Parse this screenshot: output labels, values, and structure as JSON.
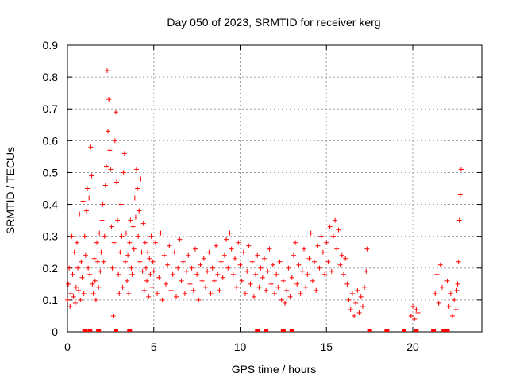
{
  "chart_data": {
    "type": "scatter",
    "title": "Day 050 of 2023, SRMTID for receiver kerg",
    "xlabel": "GPS time / hours",
    "ylabel": "SRMTID / TECUs",
    "xlim": [
      0,
      24
    ],
    "ylim": [
      0,
      0.9
    ],
    "grid": true,
    "legend": "none",
    "marker": "+",
    "color": "#ff0000",
    "x_ticks": [
      0,
      5,
      10,
      15,
      20
    ],
    "x_tick_labels": [
      "0",
      "5",
      "10",
      "15",
      "20"
    ],
    "y_ticks": [
      0,
      0.1,
      0.2,
      0.3,
      0.4,
      0.5,
      0.6,
      0.7,
      0.8,
      0.9
    ],
    "y_tick_labels": [
      "0",
      "0.1",
      "0.2",
      "0.3",
      "0.4",
      "0.5",
      "0.6",
      "0.7",
      "0.8",
      "0.9"
    ],
    "series": [
      {
        "name": "SRMTID",
        "points": [
          [
            0.0,
            0.1
          ],
          [
            0.05,
            0.15
          ],
          [
            0.1,
            0.2
          ],
          [
            0.15,
            0.08
          ],
          [
            0.2,
            0.12
          ],
          [
            0.25,
            0.3
          ],
          [
            0.3,
            0.18
          ],
          [
            0.35,
            0.11
          ],
          [
            0.4,
            0.25
          ],
          [
            0.45,
            0.09
          ],
          [
            0.5,
            0.14
          ],
          [
            0.55,
            0.28
          ],
          [
            0.6,
            0.2
          ],
          [
            0.65,
            0.13
          ],
          [
            0.7,
            0.37
          ],
          [
            0.75,
            0.1
          ],
          [
            0.8,
            0.22
          ],
          [
            0.85,
            0.17
          ],
          [
            0.9,
            0.41
          ],
          [
            0.95,
            0.12
          ],
          [
            1.0,
            0.3
          ],
          [
            1.05,
            0.24
          ],
          [
            1.1,
            0.38
          ],
          [
            1.15,
            0.45
          ],
          [
            1.2,
            0.2
          ],
          [
            1.25,
            0.42
          ],
          [
            1.3,
            0.18
          ],
          [
            1.35,
            0.58
          ],
          [
            1.4,
            0.49
          ],
          [
            1.45,
            0.15
          ],
          [
            1.5,
            0.12
          ],
          [
            1.55,
            0.23
          ],
          [
            1.6,
            0.16
          ],
          [
            1.65,
            0.1
          ],
          [
            1.7,
            0.28
          ],
          [
            1.75,
            0.22
          ],
          [
            1.8,
            0.14
          ],
          [
            1.85,
            0.31
          ],
          [
            1.9,
            0.19
          ],
          [
            1.95,
            0.25
          ],
          [
            2.0,
            0.35
          ],
          [
            2.05,
            0.4
          ],
          [
            2.1,
            0.22
          ],
          [
            2.15,
            0.3
          ],
          [
            2.2,
            0.46
          ],
          [
            2.25,
            0.52
          ],
          [
            2.3,
            0.82
          ],
          [
            2.35,
            0.63
          ],
          [
            2.4,
            0.73
          ],
          [
            2.45,
            0.57
          ],
          [
            2.5,
            0.51
          ],
          [
            2.55,
            0.33
          ],
          [
            2.6,
            0.2
          ],
          [
            2.65,
            0.05
          ],
          [
            2.7,
            0.28
          ],
          [
            2.75,
            0.6
          ],
          [
            2.8,
            0.69
          ],
          [
            2.85,
            0.47
          ],
          [
            2.9,
            0.35
          ],
          [
            2.95,
            0.18
          ],
          [
            3.0,
            0.12
          ],
          [
            3.05,
            0.25
          ],
          [
            3.1,
            0.4
          ],
          [
            3.15,
            0.3
          ],
          [
            3.2,
            0.14
          ],
          [
            3.25,
            0.5
          ],
          [
            3.3,
            0.56
          ],
          [
            3.35,
            0.22
          ],
          [
            3.4,
            0.31
          ],
          [
            3.45,
            0.16
          ],
          [
            3.5,
            0.24
          ],
          [
            3.55,
            0.12
          ],
          [
            3.6,
            0.28
          ],
          [
            3.65,
            0.35
          ],
          [
            3.7,
            0.2
          ],
          [
            3.75,
            0.18
          ],
          [
            3.8,
            0.33
          ],
          [
            3.85,
            0.26
          ],
          [
            3.9,
            0.42
          ],
          [
            3.95,
            0.36
          ],
          [
            4.0,
            0.51
          ],
          [
            4.05,
            0.45
          ],
          [
            4.1,
            0.3
          ],
          [
            4.15,
            0.38
          ],
          [
            4.2,
            0.22
          ],
          [
            4.25,
            0.48
          ],
          [
            4.3,
            0.25
          ],
          [
            4.35,
            0.19
          ],
          [
            4.4,
            0.34
          ],
          [
            4.45,
            0.13
          ],
          [
            4.5,
            0.28
          ],
          [
            4.55,
            0.2
          ],
          [
            4.6,
            0.16
          ],
          [
            4.65,
            0.25
          ],
          [
            4.7,
            0.11
          ],
          [
            4.75,
            0.23
          ],
          [
            4.8,
            0.18
          ],
          [
            4.85,
            0.3
          ],
          [
            4.9,
            0.14
          ],
          [
            4.95,
            0.22
          ],
          [
            5.0,
            0.19
          ],
          [
            5.1,
            0.28
          ],
          [
            5.2,
            0.12
          ],
          [
            5.3,
            0.17
          ],
          [
            5.4,
            0.31
          ],
          [
            5.5,
            0.1
          ],
          [
            5.6,
            0.24
          ],
          [
            5.7,
            0.15
          ],
          [
            5.8,
            0.21
          ],
          [
            5.9,
            0.27
          ],
          [
            6.0,
            0.13
          ],
          [
            6.1,
            0.18
          ],
          [
            6.2,
            0.25
          ],
          [
            6.3,
            0.11
          ],
          [
            6.4,
            0.2
          ],
          [
            6.5,
            0.29
          ],
          [
            6.6,
            0.16
          ],
          [
            6.7,
            0.22
          ],
          [
            6.8,
            0.12
          ],
          [
            6.9,
            0.19
          ],
          [
            7.0,
            0.24
          ],
          [
            7.1,
            0.15
          ],
          [
            7.2,
            0.2
          ],
          [
            7.3,
            0.13
          ],
          [
            7.4,
            0.26
          ],
          [
            7.5,
            0.18
          ],
          [
            7.6,
            0.1
          ],
          [
            7.7,
            0.21
          ],
          [
            7.8,
            0.16
          ],
          [
            7.9,
            0.23
          ],
          [
            8.0,
            0.14
          ],
          [
            8.1,
            0.19
          ],
          [
            8.2,
            0.25
          ],
          [
            8.3,
            0.12
          ],
          [
            8.4,
            0.2
          ],
          [
            8.5,
            0.16
          ],
          [
            8.6,
            0.27
          ],
          [
            8.7,
            0.18
          ],
          [
            8.8,
            0.13
          ],
          [
            8.9,
            0.22
          ],
          [
            9.0,
            0.17
          ],
          [
            9.1,
            0.24
          ],
          [
            9.2,
            0.29
          ],
          [
            9.3,
            0.2
          ],
          [
            9.4,
            0.31
          ],
          [
            9.5,
            0.26
          ],
          [
            9.6,
            0.18
          ],
          [
            9.7,
            0.23
          ],
          [
            9.8,
            0.14
          ],
          [
            9.9,
            0.28
          ],
          [
            10.0,
            0.21
          ],
          [
            10.1,
            0.16
          ],
          [
            10.2,
            0.25
          ],
          [
            10.3,
            0.12
          ],
          [
            10.4,
            0.19
          ],
          [
            10.5,
            0.27
          ],
          [
            10.6,
            0.15
          ],
          [
            10.7,
            0.22
          ],
          [
            10.8,
            0.11
          ],
          [
            10.9,
            0.18
          ],
          [
            11.0,
            0.24
          ],
          [
            11.1,
            0.14
          ],
          [
            11.2,
            0.2
          ],
          [
            11.3,
            0.17
          ],
          [
            11.4,
            0.23
          ],
          [
            11.5,
            0.13
          ],
          [
            11.6,
            0.19
          ],
          [
            11.7,
            0.26
          ],
          [
            11.8,
            0.15
          ],
          [
            11.9,
            0.21
          ],
          [
            12.0,
            0.12
          ],
          [
            12.1,
            0.18
          ],
          [
            12.2,
            0.14
          ],
          [
            12.3,
            0.22
          ],
          [
            12.4,
            0.1
          ],
          [
            12.5,
            0.16
          ],
          [
            12.6,
            0.09
          ],
          [
            12.7,
            0.13
          ],
          [
            12.8,
            0.2
          ],
          [
            12.9,
            0.11
          ],
          [
            13.0,
            0.17
          ],
          [
            13.1,
            0.24
          ],
          [
            13.2,
            0.28
          ],
          [
            13.3,
            0.15
          ],
          [
            13.4,
            0.21
          ],
          [
            13.5,
            0.12
          ],
          [
            13.6,
            0.19
          ],
          [
            13.7,
            0.26
          ],
          [
            13.8,
            0.14
          ],
          [
            13.9,
            0.18
          ],
          [
            14.0,
            0.23
          ],
          [
            14.1,
            0.31
          ],
          [
            14.2,
            0.16
          ],
          [
            14.3,
            0.22
          ],
          [
            14.4,
            0.13
          ],
          [
            14.5,
            0.27
          ],
          [
            14.6,
            0.2
          ],
          [
            14.7,
            0.3
          ],
          [
            14.8,
            0.25
          ],
          [
            14.9,
            0.18
          ],
          [
            15.0,
            0.28
          ],
          [
            15.1,
            0.22
          ],
          [
            15.2,
            0.33
          ],
          [
            15.3,
            0.19
          ],
          [
            15.4,
            0.3
          ],
          [
            15.5,
            0.35
          ],
          [
            15.6,
            0.26
          ],
          [
            15.7,
            0.32
          ],
          [
            15.8,
            0.21
          ],
          [
            15.9,
            0.24
          ],
          [
            16.0,
            0.18
          ],
          [
            16.1,
            0.23
          ],
          [
            16.2,
            0.15
          ],
          [
            16.3,
            0.1
          ],
          [
            16.4,
            0.07
          ],
          [
            16.5,
            0.12
          ],
          [
            16.6,
            0.05
          ],
          [
            16.7,
            0.09
          ],
          [
            16.8,
            0.13
          ],
          [
            16.9,
            0.06
          ],
          [
            17.0,
            0.11
          ],
          [
            17.1,
            0.08
          ],
          [
            17.2,
            0.14
          ],
          [
            17.3,
            0.19
          ],
          [
            17.35,
            0.26
          ],
          [
            19.9,
            0.05
          ],
          [
            20.0,
            0.08
          ],
          [
            20.1,
            0.04
          ],
          [
            20.2,
            0.07
          ],
          [
            20.3,
            0.06
          ],
          [
            21.3,
            0.12
          ],
          [
            21.4,
            0.18
          ],
          [
            21.5,
            0.09
          ],
          [
            21.6,
            0.21
          ],
          [
            21.7,
            0.14
          ],
          [
            22.0,
            0.16
          ],
          [
            22.1,
            0.08
          ],
          [
            22.2,
            0.12
          ],
          [
            22.3,
            0.05
          ],
          [
            22.4,
            0.1
          ],
          [
            22.5,
            0.07
          ],
          [
            22.55,
            0.13
          ],
          [
            22.6,
            0.15
          ],
          [
            22.65,
            0.22
          ],
          [
            22.7,
            0.35
          ],
          [
            22.75,
            0.43
          ],
          [
            22.8,
            0.51
          ]
        ]
      }
    ],
    "zero_markers_x": [
      1.0,
      1.3,
      1.8,
      2.8,
      3.6,
      11.0,
      11.5,
      12.5,
      13.0,
      17.5,
      18.5,
      19.5,
      20.2,
      21.2,
      21.8,
      22.0
    ]
  }
}
